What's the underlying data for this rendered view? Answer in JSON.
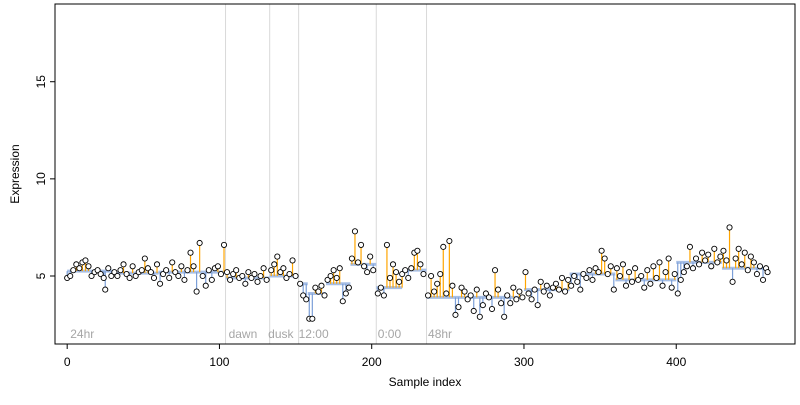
{
  "chart_data": {
    "type": "scatter",
    "title": "",
    "xlabel": "Sample index",
    "ylabel": "Expression",
    "xlim": [
      -8,
      478
    ],
    "ylim": [
      1.5,
      19.0
    ],
    "x_ticks": [
      0,
      100,
      200,
      300,
      400
    ],
    "y_ticks": [
      5,
      10,
      15
    ],
    "grid": false,
    "legend": "none",
    "colors": {
      "point_fill": "#ffffff",
      "point_stroke": "#000000",
      "up_segment": "#ffa500",
      "down_segment": "#7b9fd8",
      "baseline": "#a7bfe6",
      "divider": "#d9d9d9",
      "annotation": "#a6a6a6"
    },
    "dividers": [
      104,
      133,
      152,
      203,
      236
    ],
    "annotations": [
      {
        "x": 2,
        "label": "24hr"
      },
      {
        "x": 106,
        "label": "dawn"
      },
      {
        "x": 132,
        "label": "dusk"
      },
      {
        "x": 152,
        "label": "12:00"
      },
      {
        "x": 204,
        "label": "0:00"
      },
      {
        "x": 237,
        "label": "48hr"
      }
    ],
    "series": [
      {
        "baseline_levels": [
          {
            "x": [
              0,
              30
            ],
            "y": 5.25
          },
          {
            "x": [
              30,
              60
            ],
            "y": 5.15
          },
          {
            "x": [
              60,
              104
            ],
            "y": 5.2
          },
          {
            "x": [
              104,
              133
            ],
            "y": 4.9
          },
          {
            "x": [
              133,
              152
            ],
            "y": 5.0
          },
          {
            "x": [
              152,
              158
            ],
            "y": 4.6
          },
          {
            "x": [
              158,
              170
            ],
            "y": 4.1
          },
          {
            "x": [
              170,
              186
            ],
            "y": 4.6
          },
          {
            "x": [
              186,
              203
            ],
            "y": 5.6
          },
          {
            "x": [
              203,
              220
            ],
            "y": 4.4
          },
          {
            "x": [
              220,
              236
            ],
            "y": 5.3
          },
          {
            "x": [
              236,
              260
            ],
            "y": 3.9
          },
          {
            "x": [
              260,
              300
            ],
            "y": 3.9
          },
          {
            "x": [
              300,
              330
            ],
            "y": 4.3
          },
          {
            "x": [
              330,
              360
            ],
            "y": 5.1
          },
          {
            "x": [
              360,
              400
            ],
            "y": 4.8
          },
          {
            "x": [
              400,
              430
            ],
            "y": 5.7
          },
          {
            "x": [
              430,
              460
            ],
            "y": 5.4
          }
        ],
        "points": [
          [
            0,
            4.9
          ],
          [
            2,
            5.0
          ],
          [
            4,
            5.3
          ],
          [
            6,
            5.6
          ],
          [
            8,
            5.4
          ],
          [
            10,
            5.7
          ],
          [
            12,
            5.8
          ],
          [
            14,
            5.5
          ],
          [
            16,
            5.0
          ],
          [
            18,
            5.2
          ],
          [
            20,
            5.3
          ],
          [
            22,
            5.1
          ],
          [
            24,
            4.9
          ],
          [
            25,
            4.3
          ],
          [
            27,
            5.4
          ],
          [
            29,
            5.0
          ],
          [
            31,
            5.2
          ],
          [
            33,
            5.0
          ],
          [
            35,
            5.3
          ],
          [
            37,
            5.6
          ],
          [
            39,
            5.1
          ],
          [
            41,
            4.9
          ],
          [
            43,
            5.5
          ],
          [
            45,
            5.0
          ],
          [
            47,
            5.2
          ],
          [
            49,
            5.3
          ],
          [
            51,
            5.9
          ],
          [
            53,
            5.4
          ],
          [
            55,
            5.2
          ],
          [
            57,
            4.9
          ],
          [
            59,
            5.6
          ],
          [
            61,
            4.6
          ],
          [
            63,
            5.1
          ],
          [
            65,
            5.3
          ],
          [
            67,
            4.9
          ],
          [
            69,
            5.7
          ],
          [
            71,
            5.2
          ],
          [
            73,
            5.0
          ],
          [
            75,
            5.5
          ],
          [
            77,
            4.8
          ],
          [
            79,
            5.3
          ],
          [
            81,
            6.2
          ],
          [
            83,
            5.5
          ],
          [
            85,
            4.2
          ],
          [
            87,
            6.7
          ],
          [
            89,
            5.0
          ],
          [
            91,
            4.5
          ],
          [
            93,
            5.3
          ],
          [
            95,
            4.8
          ],
          [
            97,
            5.4
          ],
          [
            99,
            5.5
          ],
          [
            101,
            5.1
          ],
          [
            103,
            6.6
          ],
          [
            105,
            5.2
          ],
          [
            107,
            4.8
          ],
          [
            109,
            5.1
          ],
          [
            111,
            5.3
          ],
          [
            113,
            4.9
          ],
          [
            115,
            5.0
          ],
          [
            117,
            4.6
          ],
          [
            119,
            5.2
          ],
          [
            121,
            4.9
          ],
          [
            123,
            5.1
          ],
          [
            125,
            4.7
          ],
          [
            127,
            5.0
          ],
          [
            129,
            5.4
          ],
          [
            131,
            4.8
          ],
          [
            134,
            5.3
          ],
          [
            136,
            5.6
          ],
          [
            138,
            6.0
          ],
          [
            140,
            5.2
          ],
          [
            142,
            5.4
          ],
          [
            144,
            4.9
          ],
          [
            146,
            5.1
          ],
          [
            148,
            5.8
          ],
          [
            150,
            5.0
          ],
          [
            153,
            4.6
          ],
          [
            155,
            4.0
          ],
          [
            157,
            3.8
          ],
          [
            159,
            2.8
          ],
          [
            161,
            2.8
          ],
          [
            163,
            4.4
          ],
          [
            165,
            4.2
          ],
          [
            167,
            4.5
          ],
          [
            169,
            4.0
          ],
          [
            171,
            4.8
          ],
          [
            173,
            5.0
          ],
          [
            175,
            5.3
          ],
          [
            177,
            4.9
          ],
          [
            179,
            5.4
          ],
          [
            181,
            3.7
          ],
          [
            183,
            4.1
          ],
          [
            185,
            4.4
          ],
          [
            187,
            5.9
          ],
          [
            189,
            7.3
          ],
          [
            191,
            5.7
          ],
          [
            193,
            6.6
          ],
          [
            195,
            5.5
          ],
          [
            197,
            5.2
          ],
          [
            199,
            6.0
          ],
          [
            201,
            5.3
          ],
          [
            204,
            4.1
          ],
          [
            206,
            4.4
          ],
          [
            208,
            4.0
          ],
          [
            210,
            6.6
          ],
          [
            212,
            4.9
          ],
          [
            214,
            5.6
          ],
          [
            216,
            5.2
          ],
          [
            218,
            4.7
          ],
          [
            220,
            5.1
          ],
          [
            222,
            5.3
          ],
          [
            224,
            4.9
          ],
          [
            226,
            5.4
          ],
          [
            228,
            6.2
          ],
          [
            230,
            6.3
          ],
          [
            232,
            5.6
          ],
          [
            234,
            5.1
          ],
          [
            237,
            4.0
          ],
          [
            239,
            5.0
          ],
          [
            241,
            4.2
          ],
          [
            243,
            4.6
          ],
          [
            245,
            5.1
          ],
          [
            247,
            6.5
          ],
          [
            249,
            4.1
          ],
          [
            251,
            6.8
          ],
          [
            253,
            4.5
          ],
          [
            255,
            3.0
          ],
          [
            257,
            3.4
          ],
          [
            259,
            4.4
          ],
          [
            261,
            4.2
          ],
          [
            263,
            3.8
          ],
          [
            265,
            4.0
          ],
          [
            267,
            3.2
          ],
          [
            269,
            4.3
          ],
          [
            271,
            2.9
          ],
          [
            273,
            3.5
          ],
          [
            275,
            4.1
          ],
          [
            277,
            3.9
          ],
          [
            279,
            3.3
          ],
          [
            281,
            5.3
          ],
          [
            283,
            4.3
          ],
          [
            285,
            3.6
          ],
          [
            287,
            2.9
          ],
          [
            289,
            4.0
          ],
          [
            291,
            3.6
          ],
          [
            293,
            4.4
          ],
          [
            295,
            3.8
          ],
          [
            297,
            4.2
          ],
          [
            299,
            3.9
          ],
          [
            301,
            5.2
          ],
          [
            303,
            4.1
          ],
          [
            305,
            3.8
          ],
          [
            307,
            4.3
          ],
          [
            309,
            3.5
          ],
          [
            311,
            4.7
          ],
          [
            313,
            4.2
          ],
          [
            315,
            4.5
          ],
          [
            317,
            4.0
          ],
          [
            319,
            4.4
          ],
          [
            321,
            4.6
          ],
          [
            323,
            4.3
          ],
          [
            325,
            4.9
          ],
          [
            327,
            4.2
          ],
          [
            329,
            4.8
          ],
          [
            331,
            4.5
          ],
          [
            333,
            5.0
          ],
          [
            335,
            4.7
          ],
          [
            337,
            4.3
          ],
          [
            339,
            5.1
          ],
          [
            341,
            4.9
          ],
          [
            343,
            5.3
          ],
          [
            345,
            4.8
          ],
          [
            347,
            5.4
          ],
          [
            349,
            5.2
          ],
          [
            351,
            6.3
          ],
          [
            353,
            5.9
          ],
          [
            355,
            5.1
          ],
          [
            357,
            5.5
          ],
          [
            359,
            4.3
          ],
          [
            361,
            5.4
          ],
          [
            363,
            5.0
          ],
          [
            365,
            5.6
          ],
          [
            367,
            4.5
          ],
          [
            369,
            5.2
          ],
          [
            371,
            4.7
          ],
          [
            373,
            5.4
          ],
          [
            375,
            4.8
          ],
          [
            377,
            5.0
          ],
          [
            379,
            4.4
          ],
          [
            381,
            5.3
          ],
          [
            383,
            4.6
          ],
          [
            385,
            5.5
          ],
          [
            387,
            4.9
          ],
          [
            389,
            5.7
          ],
          [
            391,
            4.5
          ],
          [
            393,
            5.2
          ],
          [
            395,
            5.9
          ],
          [
            397,
            4.4
          ],
          [
            399,
            5.1
          ],
          [
            401,
            4.1
          ],
          [
            403,
            4.8
          ],
          [
            405,
            5.2
          ],
          [
            407,
            5.5
          ],
          [
            409,
            6.5
          ],
          [
            411,
            5.4
          ],
          [
            413,
            5.9
          ],
          [
            415,
            5.6
          ],
          [
            417,
            6.2
          ],
          [
            419,
            5.8
          ],
          [
            421,
            6.1
          ],
          [
            423,
            5.5
          ],
          [
            425,
            6.4
          ],
          [
            427,
            5.7
          ],
          [
            429,
            6.0
          ],
          [
            431,
            6.3
          ],
          [
            433,
            5.8
          ],
          [
            435,
            7.5
          ],
          [
            437,
            4.7
          ],
          [
            439,
            5.9
          ],
          [
            441,
            6.4
          ],
          [
            443,
            5.6
          ],
          [
            445,
            6.2
          ],
          [
            447,
            5.3
          ],
          [
            449,
            6.0
          ],
          [
            451,
            5.7
          ],
          [
            453,
            5.1
          ],
          [
            455,
            5.5
          ],
          [
            457,
            4.8
          ],
          [
            459,
            5.4
          ],
          [
            460,
            5.2
          ]
        ]
      }
    ]
  }
}
